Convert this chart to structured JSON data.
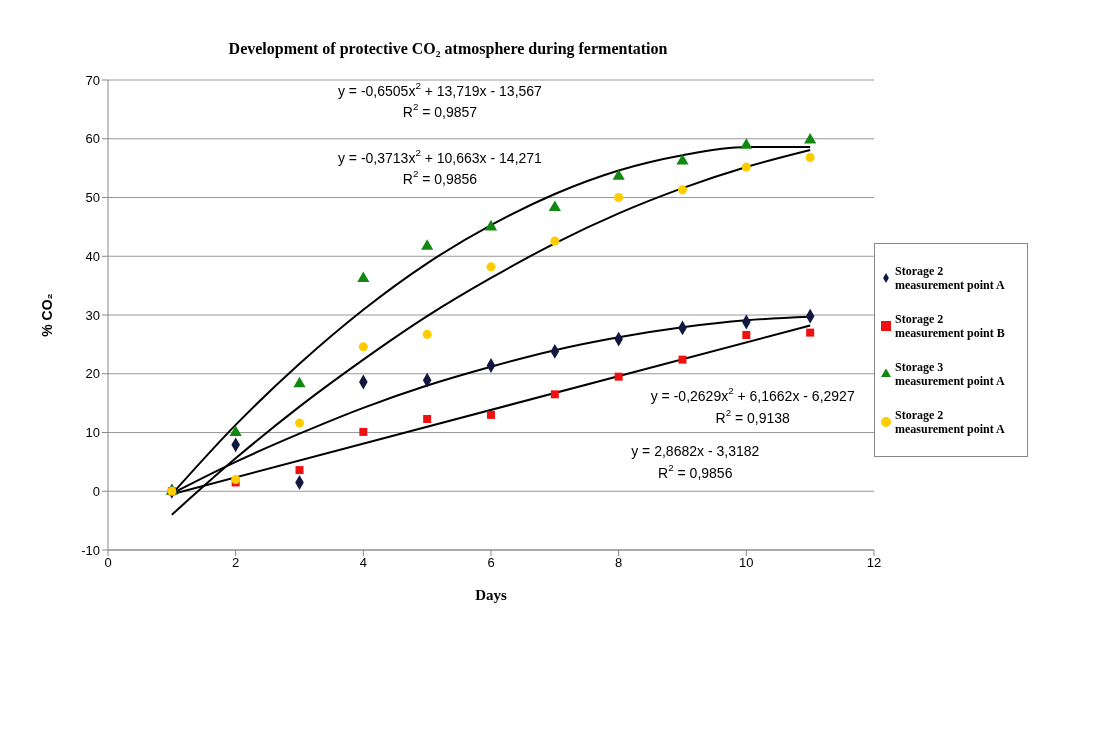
{
  "chart_data": {
    "type": "scatter",
    "title": "Development of protective CO₂  atmosphere  during fermentation",
    "xlabel": "Days",
    "ylabel": "% CO₂",
    "xlim": [
      0,
      12
    ],
    "xticks": [
      0,
      2,
      4,
      6,
      8,
      10,
      12
    ],
    "ylim": [
      -10,
      70
    ],
    "yticks": [
      -10,
      0,
      10,
      20,
      30,
      40,
      50,
      60,
      70
    ],
    "grid": "y",
    "legend": "right",
    "series": [
      {
        "name": "Storage 2 measurement point A",
        "color": "#101840",
        "marker": "diamond",
        "x": [
          1,
          2,
          3,
          4,
          5,
          6,
          7,
          8,
          9,
          10,
          11
        ],
        "values": [
          0,
          7.9,
          1.5,
          18.6,
          18.9,
          21.4,
          23.8,
          25.9,
          27.8,
          28.8,
          29.8
        ]
      },
      {
        "name": "Storage 2 measurement point B",
        "color": "#ee1111",
        "marker": "square",
        "x": [
          1,
          2,
          3,
          4,
          5,
          6,
          7,
          8,
          9,
          10,
          11
        ],
        "values": [
          0,
          1.5,
          3.6,
          10.1,
          12.3,
          13,
          16.5,
          19.5,
          22.4,
          26.6,
          27
        ]
      },
      {
        "name": "Storage 3 measurement point A",
        "color": "#118811",
        "marker": "triangle",
        "x": [
          1,
          2,
          3,
          4,
          5,
          6,
          7,
          8,
          9,
          10,
          11
        ],
        "values": [
          0,
          10,
          18.3,
          36.2,
          41.7,
          45,
          48.3,
          53.6,
          56.2,
          58.9,
          59.8
        ]
      },
      {
        "name": "Storage 2 measurement point A",
        "color": "#ffcc00",
        "marker": "circle",
        "x": [
          1,
          2,
          3,
          4,
          5,
          6,
          7,
          8,
          9,
          10,
          11
        ],
        "values": [
          0,
          2,
          11.6,
          24.6,
          26.7,
          38.2,
          42.6,
          50,
          51.3,
          55.2,
          56.8
        ]
      },
      {
        "type": "line",
        "color": "#000000",
        "x": [
          1,
          2,
          3,
          4,
          5,
          6,
          7,
          8,
          9,
          10,
          11
        ],
        "values": [
          -0.5,
          11.3,
          21.7,
          30.9,
          38.8,
          45.3,
          50.6,
          54.6,
          57.2,
          58.6,
          58.6
        ]
      },
      {
        "type": "line",
        "color": "#000000",
        "x": [
          1,
          2,
          3,
          4,
          5,
          6,
          7,
          8,
          9,
          10,
          11
        ],
        "values": [
          -4,
          5.6,
          14.4,
          22.4,
          29.8,
          36.3,
          42.2,
          47.3,
          51.6,
          55.2,
          58.1
        ]
      },
      {
        "type": "line",
        "color": "#000000",
        "x": [
          1,
          2,
          3,
          4,
          5,
          6,
          7,
          8,
          9,
          10,
          11
        ],
        "values": [
          -0.4,
          5,
          9.8,
          14.2,
          18,
          21.2,
          24,
          26.2,
          27.9,
          29.1,
          29.7
        ]
      },
      {
        "type": "line",
        "color": "#000000",
        "x": [
          1,
          11
        ],
        "values": [
          -0.5,
          28.2
        ]
      }
    ],
    "annotations": [
      "y = -0,6505x$^{2}$ + 13,719x - 13,567",
      "R$^{2}$ = 0,9857",
      "y = -0,3713x$^{2}$ + 10,663x - 14,271",
      "R$^{2}$ = 0,9856",
      "y = -0,2629x$^{2}$ + 6,1662x - 6,2927",
      "R$^{2}$ = 0,9138",
      "y = 2,8682x - 3,3182",
      "R$^{2}$ = 0,9856"
    ]
  }
}
